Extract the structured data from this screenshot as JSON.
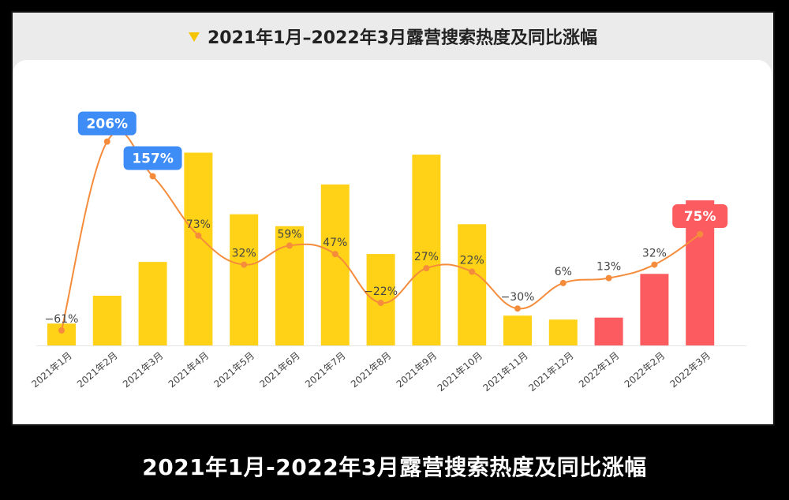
{
  "chart_title": "2021年1月–2022年3月露营搜索热度及同比涨幅",
  "caption": "2021年1月-2022年3月露营搜索热度及同比涨幅",
  "colors": {
    "bar_2021": "#ffd217",
    "bar_2022": "#fc5c5f",
    "line": "#f58c3c",
    "badge_blue": "#3e8df7",
    "badge_red": "#fc5c5f",
    "title_arrow": "#f5c400"
  },
  "chart_data": {
    "type": "bar",
    "title": "2021年1月–2022年3月露营搜索热度及同比涨幅",
    "categories": [
      "2021年1月",
      "2021年2月",
      "2021年3月",
      "2021年4月",
      "2021年5月",
      "2021年6月",
      "2021年7月",
      "2021年8月",
      "2021年9月",
      "2021年10月",
      "2021年11月",
      "2021年12月",
      "2022年1月",
      "2022年2月",
      "2022年3月"
    ],
    "series": [
      {
        "type": "bar",
        "values": [
          11,
          25,
          42,
          97,
          66,
          60,
          81,
          46,
          96,
          61,
          15,
          13,
          14,
          36,
          73
        ]
      },
      {
        "type": "line",
        "values": [
          -61,
          206,
          157,
          73,
          32,
          59,
          47,
          -22,
          27,
          22,
          -30,
          6,
          13,
          32,
          75
        ],
        "labels": [
          "−61%",
          "206%",
          "157%",
          "73%",
          "32%",
          "59%",
          "47%",
          "−22%",
          "27%",
          "22%",
          "−30%",
          "6%",
          "13%",
          "32%",
          "75%"
        ]
      }
    ],
    "highlighted_labels": [
      1,
      2,
      14
    ],
    "bar_ylim": [
      0,
      100
    ],
    "line_ylim": [
      -100,
      240
    ],
    "grid": false
  }
}
